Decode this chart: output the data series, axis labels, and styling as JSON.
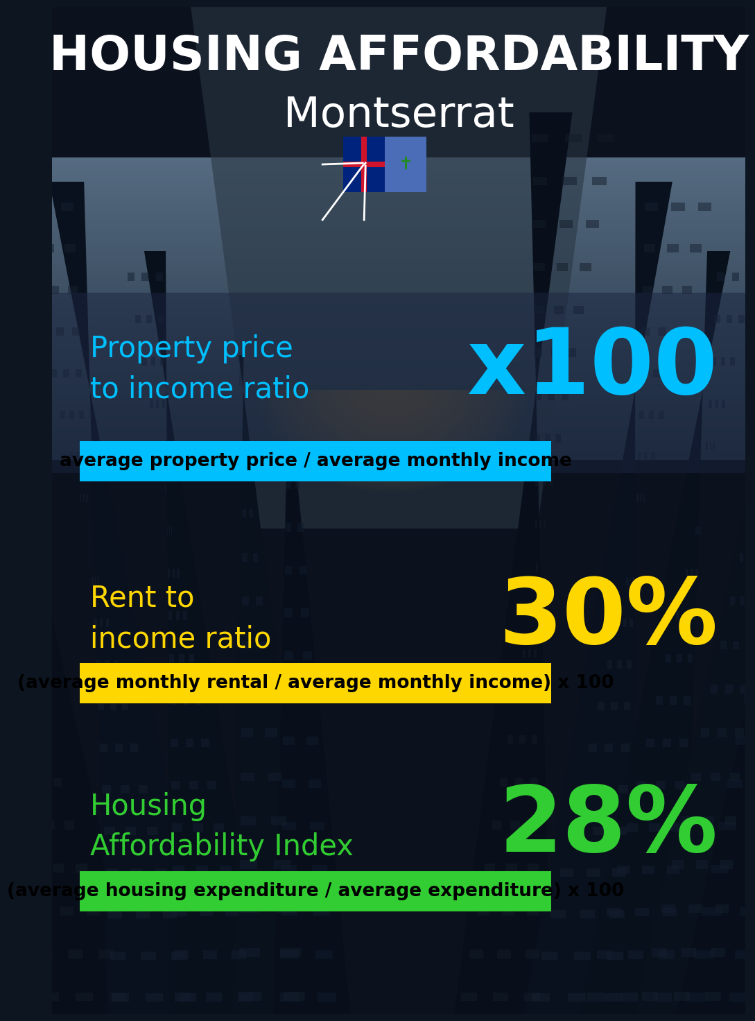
{
  "title_line1": "HOUSING AFFORDABILITY",
  "title_line2": "Montserrat",
  "flag_emoji": "🇲🇸",
  "section1_label": "Property price\nto income ratio",
  "section1_value": "x100",
  "section1_formula": "average property price / average monthly income",
  "section1_label_color": "#00BFFF",
  "section1_value_color": "#00BFFF",
  "section1_formula_bg": "#00BFFF",
  "section1_formula_color": "#000000",
  "section2_label": "Rent to\nincome ratio",
  "section2_value": "30%",
  "section2_formula": "(average monthly rental / average monthly income) x 100",
  "section2_label_color": "#FFD700",
  "section2_value_color": "#FFD700",
  "section2_formula_bg": "#FFD700",
  "section2_formula_color": "#000000",
  "section3_label": "Housing\nAffordability Index",
  "section3_value": "28%",
  "section3_formula": "(average housing expenditure / average expenditure) x 100",
  "section3_label_color": "#32CD32",
  "section3_value_color": "#32CD32",
  "section3_formula_bg": "#32CD32",
  "section3_formula_color": "#000000",
  "title_color": "#FFFFFF",
  "title_fontsize": 50,
  "subtitle_fontsize": 44,
  "label_fontsize": 30,
  "value_fontsize": 95,
  "formula_fontsize": 19,
  "bg_color": "#0d1520"
}
